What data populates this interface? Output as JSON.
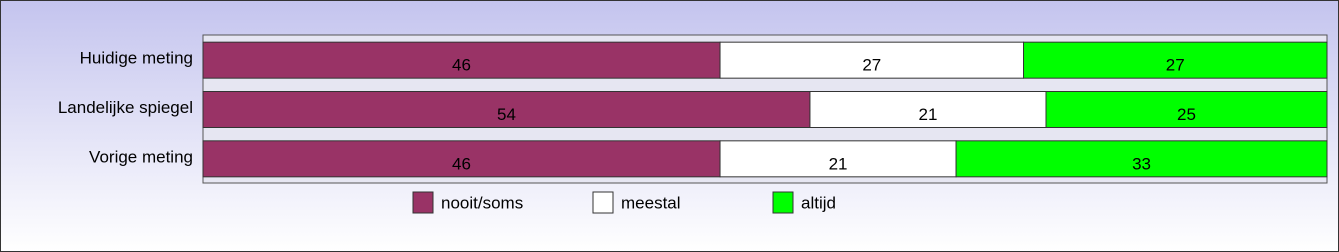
{
  "chart_data": {
    "type": "stacked-bar-horizontal",
    "categories": [
      "Huidige meting",
      "Landelijke spiegel",
      "Vorige meting"
    ],
    "series": [
      {
        "name": "nooit/soms",
        "color": "#993366",
        "values": [
          46,
          54,
          46
        ]
      },
      {
        "name": "meestal",
        "color": "#ffffff",
        "values": [
          27,
          21,
          21
        ]
      },
      {
        "name": "altijd",
        "color": "#00ff00",
        "values": [
          27,
          25,
          33
        ]
      }
    ],
    "xlim": [
      0,
      100
    ],
    "legend": "bottom"
  }
}
